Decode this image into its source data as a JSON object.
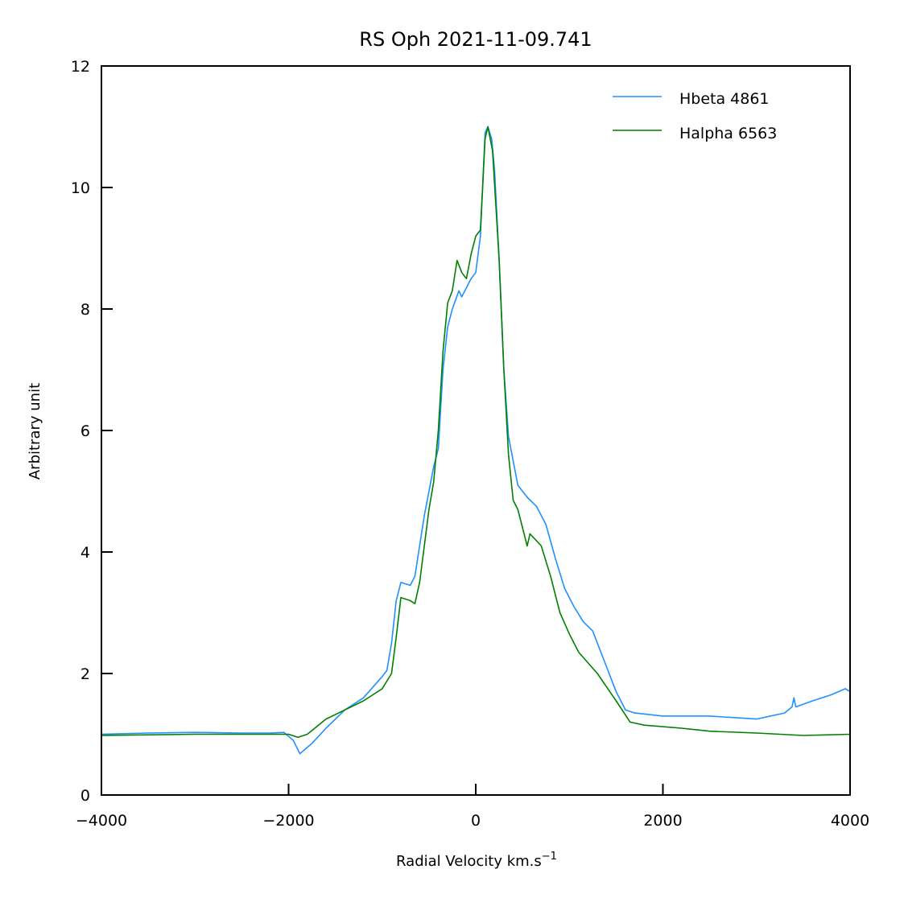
{
  "chart_data": {
    "type": "line",
    "title": "RS Oph 2021-11-09.741",
    "xlabel": "Radial Velocity  km.s",
    "xlabel_superscript": "−1",
    "ylabel": "Arbitrary unit",
    "xlim": [
      -4000,
      4000
    ],
    "ylim": [
      0,
      12
    ],
    "xticks": [
      -4000,
      -2000,
      0,
      2000,
      4000
    ],
    "xtick_labels": [
      "−4000",
      "−2000",
      "0",
      "2000",
      "4000"
    ],
    "yticks": [
      0,
      2,
      4,
      6,
      8,
      10,
      12
    ],
    "ytick_labels": [
      "0",
      "2",
      "4",
      "6",
      "8",
      "10",
      "12"
    ],
    "grid": false,
    "legend_position": "top-right",
    "series": [
      {
        "name": "Hbeta 4861",
        "color": "#1e90ff",
        "x": [
          -4000,
          -3500,
          -3000,
          -2500,
          -2200,
          -2050,
          -1950,
          -1880,
          -1750,
          -1600,
          -1400,
          -1200,
          -1000,
          -950,
          -900,
          -850,
          -800,
          -700,
          -650,
          -550,
          -450,
          -400,
          -350,
          -300,
          -250,
          -180,
          -150,
          -100,
          -50,
          0,
          50,
          100,
          130,
          170,
          200,
          250,
          300,
          350,
          400,
          450,
          550,
          650,
          750,
          850,
          950,
          1050,
          1150,
          1250,
          1300,
          1400,
          1500,
          1600,
          1700,
          2000,
          2500,
          3000,
          3300,
          3380,
          3400,
          3420,
          3600,
          3800,
          3950,
          4000
        ],
        "y": [
          1.0,
          1.02,
          1.03,
          1.02,
          1.02,
          1.03,
          0.9,
          0.68,
          0.85,
          1.1,
          1.4,
          1.6,
          1.95,
          2.05,
          2.5,
          3.2,
          3.5,
          3.45,
          3.6,
          4.6,
          5.4,
          5.7,
          7.0,
          7.7,
          8.0,
          8.3,
          8.2,
          8.35,
          8.5,
          8.6,
          9.2,
          10.9,
          11.0,
          10.8,
          10.3,
          8.8,
          7.0,
          5.9,
          5.5,
          5.1,
          4.9,
          4.75,
          4.45,
          3.9,
          3.4,
          3.1,
          2.85,
          2.7,
          2.5,
          2.1,
          1.7,
          1.4,
          1.35,
          1.3,
          1.3,
          1.25,
          1.35,
          1.45,
          1.6,
          1.45,
          1.55,
          1.65,
          1.75,
          1.7
        ]
      },
      {
        "name": "Halpha 6563",
        "color": "#008000",
        "x": [
          -4000,
          -3000,
          -2000,
          -1900,
          -1800,
          -1600,
          -1400,
          -1200,
          -1000,
          -900,
          -850,
          -800,
          -700,
          -650,
          -600,
          -500,
          -450,
          -400,
          -350,
          -300,
          -250,
          -200,
          -150,
          -100,
          -50,
          0,
          50,
          100,
          130,
          180,
          250,
          300,
          350,
          400,
          450,
          500,
          550,
          580,
          700,
          800,
          900,
          1000,
          1100,
          1300,
          1500,
          1650,
          1800,
          2200,
          2500,
          3000,
          3500,
          4000
        ],
        "y": [
          0.98,
          1.0,
          1.0,
          0.95,
          1.0,
          1.25,
          1.4,
          1.55,
          1.75,
          2.0,
          2.6,
          3.25,
          3.2,
          3.15,
          3.5,
          4.7,
          5.15,
          6.0,
          7.3,
          8.1,
          8.3,
          8.8,
          8.6,
          8.5,
          8.9,
          9.2,
          9.3,
          10.8,
          11.0,
          10.6,
          8.8,
          7.0,
          5.6,
          4.85,
          4.7,
          4.4,
          4.1,
          4.3,
          4.1,
          3.6,
          3.0,
          2.65,
          2.35,
          2.0,
          1.55,
          1.2,
          1.15,
          1.1,
          1.05,
          1.02,
          0.98,
          1.0
        ]
      }
    ]
  }
}
